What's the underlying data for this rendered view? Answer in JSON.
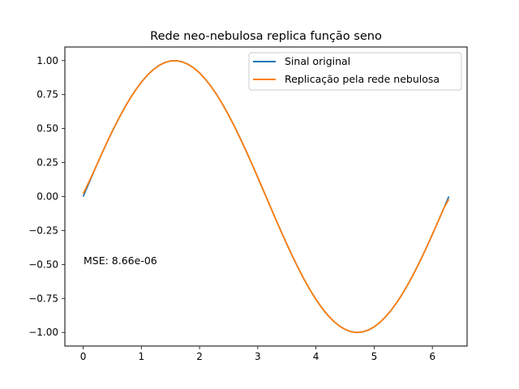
{
  "chart_data": {
    "type": "line",
    "title": "Rede neo-nebulosa replica função seno",
    "xlabel": "",
    "ylabel": "",
    "xlim": [
      -0.314,
      6.597
    ],
    "ylim": [
      -1.1,
      1.1
    ],
    "xticks": [
      0,
      1,
      2,
      3,
      4,
      5,
      6
    ],
    "xtick_labels": [
      "0",
      "1",
      "2",
      "3",
      "4",
      "5",
      "6"
    ],
    "yticks": [
      1.0,
      0.75,
      0.5,
      0.25,
      0.0,
      -0.25,
      -0.5,
      -0.75,
      -1.0
    ],
    "ytick_labels": [
      "1.00",
      "0.75",
      "0.50",
      "0.25",
      "0.00",
      "−0.25",
      "−0.50",
      "−0.75",
      "−1.00"
    ],
    "grid": false,
    "legend_position": "upper right",
    "series": [
      {
        "name": "Sinal original",
        "color": "#1f77b4",
        "x": [
          0.0,
          0.1,
          0.2,
          0.3,
          0.4,
          0.5,
          0.6,
          0.7,
          0.8,
          0.9,
          1.0,
          1.1,
          1.2,
          1.3,
          1.4,
          1.5,
          1.6,
          1.7,
          1.8,
          1.9,
          2.0,
          2.1,
          2.2,
          2.3,
          2.4,
          2.5,
          2.6,
          2.7,
          2.8,
          2.9,
          3.0,
          3.1,
          3.2,
          3.3,
          3.4,
          3.5,
          3.6,
          3.7,
          3.8,
          3.9,
          4.0,
          4.1,
          4.2,
          4.3,
          4.4,
          4.5,
          4.6,
          4.7,
          4.8,
          4.9,
          5.0,
          5.1,
          5.2,
          5.3,
          5.4,
          5.5,
          5.6,
          5.7,
          5.8,
          5.9,
          6.0,
          6.1,
          6.2,
          6.283
        ],
        "y": [
          0.0,
          0.0998,
          0.1987,
          0.2955,
          0.3894,
          0.4794,
          0.5646,
          0.6442,
          0.7174,
          0.7833,
          0.8415,
          0.8912,
          0.932,
          0.9636,
          0.9854,
          0.9975,
          0.9996,
          0.9917,
          0.9738,
          0.9463,
          0.9093,
          0.8632,
          0.8085,
          0.7457,
          0.6755,
          0.5985,
          0.5155,
          0.4274,
          0.335,
          0.2392,
          0.1411,
          0.0416,
          -0.0584,
          -0.1577,
          -0.2555,
          -0.3508,
          -0.4425,
          -0.5298,
          -0.6119,
          -0.6878,
          -0.7568,
          -0.8183,
          -0.8716,
          -0.9162,
          -0.9516,
          -0.9775,
          -0.9937,
          -0.9999,
          -0.9962,
          -0.9825,
          -0.9589,
          -0.9258,
          -0.8835,
          -0.8323,
          -0.7728,
          -0.7055,
          -0.6313,
          -0.5507,
          -0.4646,
          -0.3739,
          -0.2794,
          -0.1822,
          -0.0831,
          0.0
        ]
      },
      {
        "name": "Replicação pela rede nebulosa",
        "color": "#ff7f0e",
        "x": [
          0.0,
          0.1,
          0.2,
          0.3,
          0.4,
          0.5,
          0.6,
          0.7,
          0.8,
          0.9,
          1.0,
          1.1,
          1.2,
          1.3,
          1.4,
          1.5,
          1.6,
          1.7,
          1.8,
          1.9,
          2.0,
          2.1,
          2.2,
          2.3,
          2.4,
          2.5,
          2.6,
          2.7,
          2.8,
          2.9,
          3.0,
          3.1,
          3.2,
          3.3,
          3.4,
          3.5,
          3.6,
          3.7,
          3.8,
          3.9,
          4.0,
          4.1,
          4.2,
          4.3,
          4.4,
          4.5,
          4.6,
          4.7,
          4.8,
          4.9,
          5.0,
          5.1,
          5.2,
          5.3,
          5.4,
          5.5,
          5.6,
          5.7,
          5.8,
          5.9,
          6.0,
          6.1,
          6.2,
          6.283
        ],
        "y": [
          0.02,
          0.108,
          0.2,
          0.297,
          0.39,
          0.48,
          0.565,
          0.643,
          0.717,
          0.782,
          0.84,
          0.892,
          0.932,
          0.963,
          0.985,
          0.997,
          0.999,
          0.991,
          0.973,
          0.946,
          0.909,
          0.863,
          0.808,
          0.746,
          0.675,
          0.598,
          0.515,
          0.427,
          0.335,
          0.239,
          0.141,
          0.042,
          -0.058,
          -0.158,
          -0.256,
          -0.351,
          -0.442,
          -0.53,
          -0.612,
          -0.688,
          -0.757,
          -0.818,
          -0.872,
          -0.916,
          -0.952,
          -0.977,
          -0.994,
          -1.0,
          -0.996,
          -0.982,
          -0.959,
          -0.926,
          -0.883,
          -0.832,
          -0.773,
          -0.706,
          -0.631,
          -0.551,
          -0.465,
          -0.374,
          -0.279,
          -0.182,
          -0.083,
          -0.02
        ]
      }
    ],
    "annotations": [
      {
        "text": "MSE: 8.66e-06",
        "x": 0.0,
        "y": -0.48
      }
    ]
  }
}
